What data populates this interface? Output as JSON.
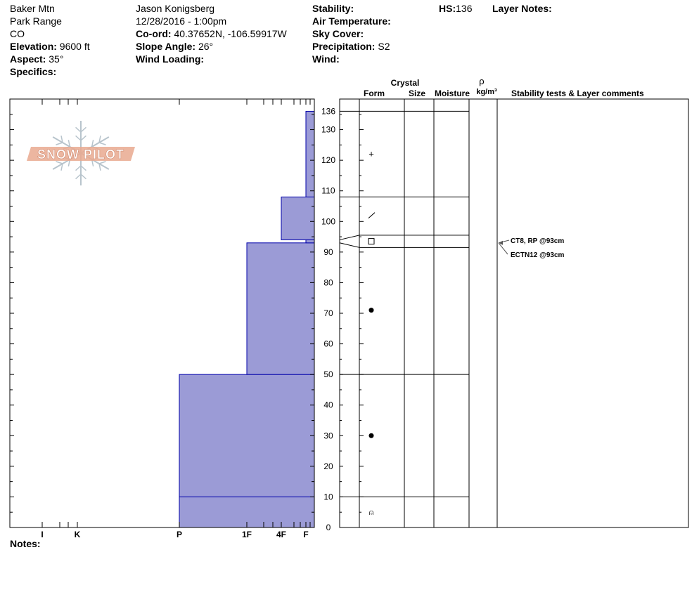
{
  "header": {
    "location": "Baker Mtn",
    "range": "Park Range",
    "state": "CO",
    "elevation_label": "Elevation:",
    "elevation_value": "9600 ft",
    "aspect_label": "Aspect:",
    "aspect_value": "35°",
    "specifics_label": "Specifics:",
    "observer": "Jason Konigsberg",
    "datetime": "12/28/2016 - 1:00pm",
    "coord_label": "Co-ord:",
    "coord_value": "40.37652N, -106.59917W",
    "slope_label": "Slope Angle:",
    "slope_value": "26°",
    "wind_loading_label": "Wind Loading:",
    "stability_label": "Stability:",
    "air_temp_label": "Air Temperature:",
    "sky_cover_label": "Sky Cover:",
    "precip_label": "Precipitation:",
    "precip_value": "S2",
    "wind_label": "Wind:",
    "hs_label": "HS:",
    "hs_value": "136",
    "layer_notes_label": "Layer Notes:"
  },
  "logo_text": "SNOW PILOT",
  "notes_label": "Notes:",
  "columns": {
    "crystal": "Crystal",
    "form": "Form",
    "size": "Size",
    "moisture": "Moisture",
    "rho": "ρ",
    "density_unit": "kg/m³",
    "stability": "Stability tests & Layer comments"
  },
  "colors": {
    "hardness_fill": "#9b9bd6",
    "hardness_stroke": "#0000aa",
    "logo": "#e9a98f"
  },
  "chart_data": {
    "type": "bar",
    "orientation": "horizontal",
    "y_axis": {
      "label": "",
      "range": [
        0,
        136
      ],
      "ticks": [
        "0",
        "10",
        "20",
        "30",
        "40",
        "50",
        "60",
        "70",
        "80",
        "90",
        "100",
        "110",
        "120",
        "130",
        "136"
      ]
    },
    "x_axis": {
      "label": "",
      "ticks": [
        "I",
        "K",
        "P",
        "1F",
        "4F",
        "F"
      ]
    },
    "hardness_layers": [
      {
        "bottom": 0,
        "top": 10,
        "hardness": "P"
      },
      {
        "bottom": 10,
        "top": 50,
        "hardness": "P"
      },
      {
        "bottom": 50,
        "top": 93,
        "hardness": "1F"
      },
      {
        "bottom": 93,
        "top": 94,
        "hardness": "F"
      },
      {
        "bottom": 94,
        "top": 108,
        "hardness": "4F"
      },
      {
        "bottom": 108,
        "top": 136,
        "hardness": "F"
      }
    ],
    "layer_boundaries": [
      0,
      10,
      50,
      91.5,
      95.5,
      108,
      136
    ],
    "crystal_forms": [
      {
        "height": 5,
        "symbol": "⍝"
      },
      {
        "height": 30,
        "symbol": "●"
      },
      {
        "height": 71,
        "symbol": "●"
      },
      {
        "height": 93.5,
        "symbol": "□"
      },
      {
        "height": 102,
        "symbol": "/"
      },
      {
        "height": 122,
        "symbol": "+"
      }
    ],
    "stability_tests": [
      {
        "text": "CT8, RP @93cm"
      },
      {
        "text": "ECTN12 @93cm"
      }
    ]
  }
}
